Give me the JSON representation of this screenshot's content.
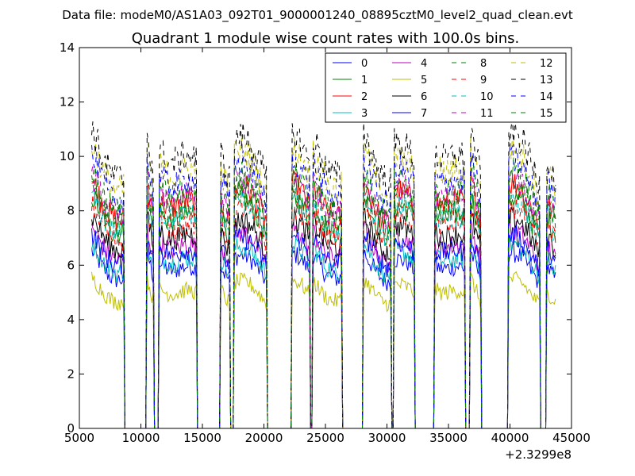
{
  "figure": {
    "suptitle": "Data file: modeM0/AS1A03_092T01_9000001240_08895cztM0_level2_quad_clean.evt"
  },
  "chart_data": {
    "type": "line",
    "title": "Quadrant 1 module wise count rates with 100.0s bins.",
    "xlabel": "",
    "ylabel": "",
    "x_offset_label": "+2.3299e8",
    "xlim": [
      5000,
      45000
    ],
    "ylim": [
      0,
      14
    ],
    "xticks": [
      5000,
      10000,
      15000,
      20000,
      25000,
      30000,
      35000,
      40000,
      45000
    ],
    "yticks": [
      0,
      2,
      4,
      6,
      8,
      10,
      12,
      14
    ],
    "xtick_labels": [
      "5000",
      "10000",
      "15000",
      "20000",
      "25000",
      "30000",
      "35000",
      "40000",
      "45000"
    ],
    "ytick_labels": [
      "0",
      "2",
      "4",
      "6",
      "8",
      "10",
      "12",
      "14"
    ],
    "grid": false,
    "legend_position": "top-right",
    "bin_size_s": 100,
    "active_intervals": [
      [
        6000,
        8600
      ],
      [
        10500,
        11000
      ],
      [
        11500,
        14500
      ],
      [
        16500,
        17200
      ],
      [
        17600,
        20200
      ],
      [
        22300,
        23700
      ],
      [
        24000,
        26300
      ],
      [
        28100,
        30300
      ],
      [
        30600,
        32200
      ],
      [
        33900,
        36300
      ],
      [
        36800,
        37600
      ],
      [
        39900,
        42400
      ],
      [
        43000,
        43700
      ]
    ],
    "series": [
      {
        "name": "0",
        "color": "#0000ff",
        "dash": "solid",
        "mean": 6.0
      },
      {
        "name": "1",
        "color": "#008000",
        "dash": "solid",
        "mean": 7.9
      },
      {
        "name": "2",
        "color": "#ff0000",
        "dash": "solid",
        "mean": 8.4
      },
      {
        "name": "3",
        "color": "#00bfbf",
        "dash": "solid",
        "mean": 6.3
      },
      {
        "name": "4",
        "color": "#bf00bf",
        "dash": "solid",
        "mean": 6.8
      },
      {
        "name": "5",
        "color": "#bfbf00",
        "dash": "solid",
        "mean": 5.1
      },
      {
        "name": "6",
        "color": "#000000",
        "dash": "solid",
        "mean": 7.2
      },
      {
        "name": "7",
        "color": "#0000ff",
        "dash": "solid",
        "mean": 6.6
      },
      {
        "name": "8",
        "color": "#008000",
        "dash": "dashed",
        "mean": 8.2
      },
      {
        "name": "9",
        "color": "#ff0000",
        "dash": "dashed",
        "mean": 7.6
      },
      {
        "name": "10",
        "color": "#00bfbf",
        "dash": "dashed",
        "mean": 7.9
      },
      {
        "name": "11",
        "color": "#bf00bf",
        "dash": "dashed",
        "mean": 8.6
      },
      {
        "name": "12",
        "color": "#bfbf00",
        "dash": "dashed",
        "mean": 9.6
      },
      {
        "name": "13",
        "color": "#000000",
        "dash": "dashed",
        "mean": 10.1
      },
      {
        "name": "14",
        "color": "#0000ff",
        "dash": "dashed",
        "mean": 9.2
      },
      {
        "name": "15",
        "color": "#008000",
        "dash": "dashed",
        "mean": 8.8
      }
    ]
  }
}
